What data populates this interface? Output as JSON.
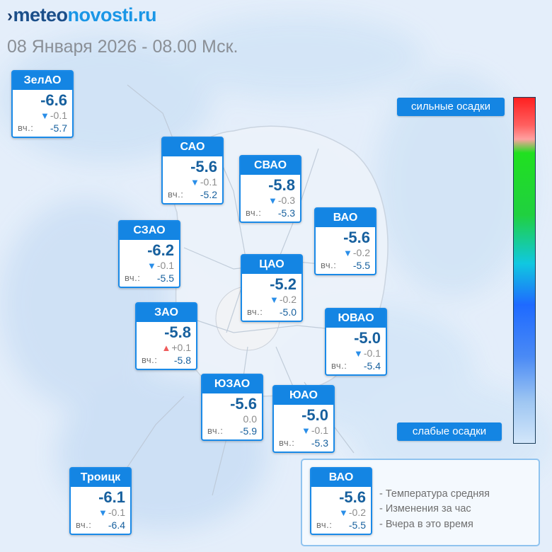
{
  "site": {
    "logo_part1": "meteo",
    "logo_part2": "novosti.ru"
  },
  "date_text": "08 Января 2026 - 08.00 Мск.",
  "districts": [
    {
      "name": "ЗелАО",
      "temp": "-6.6",
      "trend": "down",
      "change": "-0.1",
      "yesterday_label": "вч.:",
      "yesterday": "-5.7"
    },
    {
      "name": "САО",
      "temp": "-5.6",
      "trend": "down",
      "change": "-0.1",
      "yesterday_label": "вч.:",
      "yesterday": "-5.2"
    },
    {
      "name": "СВАО",
      "temp": "-5.8",
      "trend": "down",
      "change": "-0.3",
      "yesterday_label": "вч.:",
      "yesterday": "-5.3"
    },
    {
      "name": "ВАО",
      "temp": "-5.6",
      "trend": "down",
      "change": "-0.2",
      "yesterday_label": "вч.:",
      "yesterday": "-5.5"
    },
    {
      "name": "СЗАО",
      "temp": "-6.2",
      "trend": "down",
      "change": "-0.1",
      "yesterday_label": "вч.:",
      "yesterday": "-5.5"
    },
    {
      "name": "ЦАО",
      "temp": "-5.2",
      "trend": "down",
      "change": "-0.2",
      "yesterday_label": "вч.:",
      "yesterday": "-5.0"
    },
    {
      "name": "ЗАО",
      "temp": "-5.8",
      "trend": "up",
      "change": "+0.1",
      "yesterday_label": "вч.:",
      "yesterday": "-5.8"
    },
    {
      "name": "ЮВАО",
      "temp": "-5.0",
      "trend": "down",
      "change": "-0.1",
      "yesterday_label": "вч.:",
      "yesterday": "-5.4"
    },
    {
      "name": "ЮЗАО",
      "temp": "-5.6",
      "trend": "none",
      "change": "0.0",
      "yesterday_label": "вч.:",
      "yesterday": "-5.9"
    },
    {
      "name": "ЮАО",
      "temp": "-5.0",
      "trend": "down",
      "change": "-0.1",
      "yesterday_label": "вч.:",
      "yesterday": "-5.3"
    },
    {
      "name": "Троицк",
      "temp": "-6.1",
      "trend": "down",
      "change": "-0.1",
      "yesterday_label": "вч.:",
      "yesterday": "-6.4"
    }
  ],
  "precip_scale": {
    "heavy_label": "сильные осадки",
    "light_label": "слабые осадки"
  },
  "legend": {
    "example": {
      "name": "ВАО",
      "temp": "-5.6",
      "trend": "down",
      "change": "-0.2",
      "yesterday_label": "вч.:",
      "yesterday": "-5.5"
    },
    "lines": [
      "- Температура средняя",
      "- Изменения за час",
      "- Вчера в это время"
    ]
  },
  "colors": {
    "card_header": "#1485e3",
    "card_border": "#1a8ae8",
    "temp_text": "#17609e",
    "trend_down": "#2a8ee8",
    "trend_up": "#ef5c5c",
    "logo_dark": "#1b4f8a",
    "logo_light": "#1a96e6"
  }
}
